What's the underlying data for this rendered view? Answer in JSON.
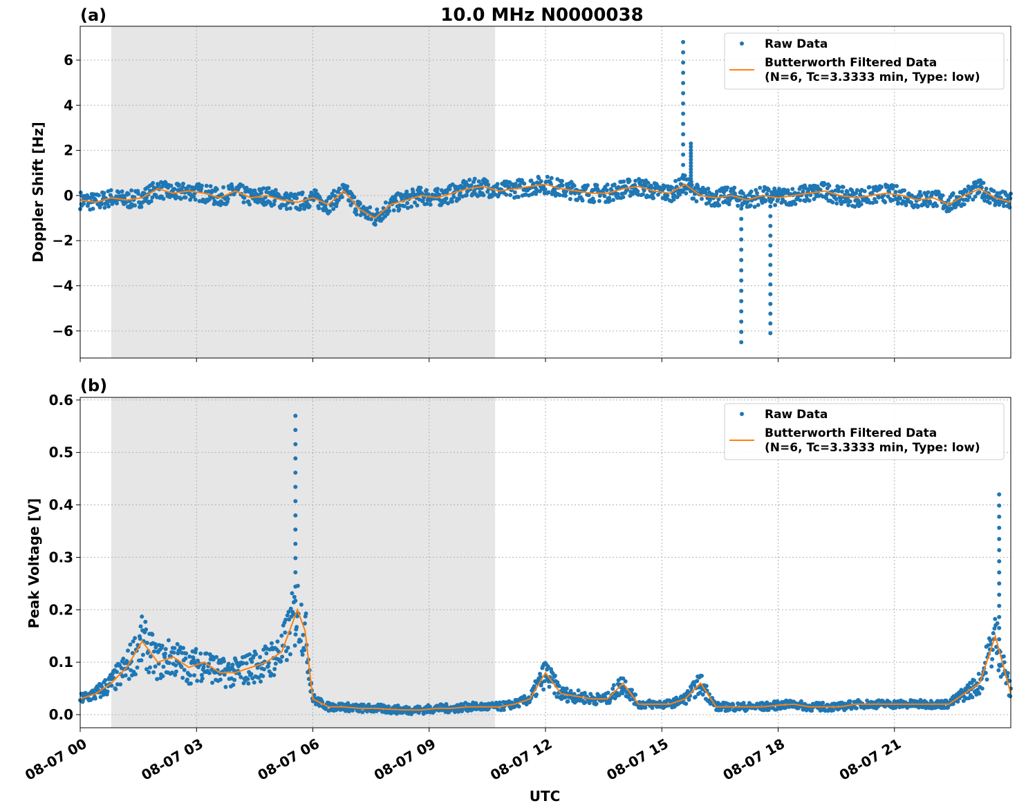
{
  "figure": {
    "title": "10.0 MHz N0000038",
    "xlabel": "UTC",
    "x_ticks": [
      "08-07 00",
      "08-07 03",
      "08-07 06",
      "08-07 09",
      "08-07 12",
      "08-07 15",
      "08-07 18",
      "08-07 21"
    ],
    "shaded_region_hours": [
      0.8,
      10.7
    ],
    "colors": {
      "raw": "#1f77b4",
      "filtered": "#ff7f0e",
      "shade": "#e6e6e6",
      "grid": "#b0b0b0"
    }
  },
  "legend": {
    "raw_label": "Raw Data",
    "filtered_label_line1": "Butterworth Filtered Data",
    "filtered_label_line2": "(N=6, Tc=3.3333 min, Type: low)"
  },
  "chart_data": [
    {
      "type": "scatter",
      "panel_label": "(a)",
      "ylabel": "Doppler Shift [Hz]",
      "xlim_hours": [
        0,
        24
      ],
      "ylim": [
        -7.2,
        7.5
      ],
      "y_ticks": [
        -6,
        -4,
        -2,
        0,
        2,
        4,
        6
      ],
      "y_tick_labels": [
        "−6",
        "−4",
        "−2",
        "0",
        "2",
        "4",
        "6"
      ],
      "grid": true,
      "legend_position": "top-right",
      "series": [
        {
          "name": "Raw Data",
          "x_hours": [
            0,
            0.4,
            0.8,
            1.2,
            1.6,
            2.0,
            2.4,
            2.8,
            3.2,
            3.6,
            4.0,
            4.4,
            4.8,
            5.2,
            5.6,
            6.0,
            6.4,
            6.8,
            7.2,
            7.6,
            8.0,
            8.4,
            8.8,
            9.2,
            9.6,
            10.0,
            10.4,
            10.8,
            11.2,
            11.6,
            12.0,
            12.4,
            12.8,
            13.2,
            13.6,
            14.0,
            14.4,
            14.8,
            15.2,
            15.6,
            16.0,
            16.4,
            16.8,
            17.2,
            17.6,
            18.0,
            18.4,
            18.8,
            19.2,
            19.6,
            20.0,
            20.4,
            20.8,
            21.2,
            21.6,
            22.0,
            22.4,
            22.8,
            23.2,
            23.6,
            24.0
          ],
          "y": [
            -0.2,
            -0.3,
            -0.1,
            -0.2,
            -0.1,
            0.3,
            0.1,
            0.2,
            0.1,
            -0.1,
            0.2,
            -0.1,
            0.0,
            -0.2,
            -0.3,
            -0.1,
            -0.4,
            0.2,
            -0.6,
            -1.0,
            -0.4,
            -0.2,
            0.0,
            -0.1,
            0.1,
            0.3,
            0.4,
            0.2,
            0.3,
            0.4,
            0.5,
            0.3,
            0.2,
            0.1,
            0.1,
            0.3,
            0.4,
            0.2,
            0.1,
            0.5,
            0.0,
            -0.1,
            0.0,
            -0.2,
            0.0,
            -0.1,
            0.0,
            0.1,
            0.2,
            0.0,
            -0.1,
            0.0,
            0.1,
            0.0,
            -0.2,
            -0.1,
            -0.4,
            0.0,
            0.3,
            -0.1,
            -0.3
          ],
          "spikes_hours": [
            15.55,
            15.75,
            17.05,
            17.8
          ],
          "spikes_y": [
            6.8,
            2.3,
            -6.5,
            -6.1
          ]
        },
        {
          "name": "Butterworth Filtered Data (N=6, Tc=3.3333 min, Type: low)",
          "x_hours": [
            0,
            0.4,
            0.8,
            1.2,
            1.6,
            2.0,
            2.4,
            2.8,
            3.2,
            3.6,
            4.0,
            4.4,
            4.8,
            5.2,
            5.6,
            6.0,
            6.4,
            6.8,
            7.2,
            7.6,
            8.0,
            8.4,
            8.8,
            9.2,
            9.6,
            10.0,
            10.4,
            10.8,
            11.2,
            11.6,
            12.0,
            12.4,
            12.8,
            13.2,
            13.6,
            14.0,
            14.4,
            14.8,
            15.2,
            15.6,
            16.0,
            16.4,
            16.8,
            17.2,
            17.6,
            18.0,
            18.4,
            18.8,
            19.2,
            19.6,
            20.0,
            20.4,
            20.8,
            21.2,
            21.6,
            22.0,
            22.4,
            22.8,
            23.2,
            23.6,
            24.0
          ],
          "y": [
            -0.2,
            -0.3,
            -0.1,
            -0.2,
            -0.1,
            0.3,
            0.1,
            0.2,
            0.1,
            -0.1,
            0.2,
            -0.1,
            0.0,
            -0.2,
            -0.3,
            -0.1,
            -0.4,
            0.2,
            -0.6,
            -1.0,
            -0.4,
            -0.2,
            0.0,
            -0.1,
            0.1,
            0.3,
            0.4,
            0.2,
            0.3,
            0.4,
            0.5,
            0.3,
            0.2,
            0.1,
            0.1,
            0.3,
            0.4,
            0.2,
            0.1,
            0.5,
            0.0,
            -0.1,
            0.0,
            -0.2,
            0.0,
            -0.1,
            0.0,
            0.1,
            0.2,
            0.0,
            -0.1,
            0.0,
            0.1,
            0.0,
            -0.2,
            -0.1,
            -0.4,
            0.0,
            0.3,
            -0.1,
            -0.3
          ]
        }
      ]
    },
    {
      "type": "scatter",
      "panel_label": "(b)",
      "ylabel": "Peak Voltage [V]",
      "xlim_hours": [
        0,
        24
      ],
      "ylim": [
        -0.025,
        0.605
      ],
      "y_ticks": [
        0.0,
        0.1,
        0.2,
        0.3,
        0.4,
        0.5,
        0.6
      ],
      "y_tick_labels": [
        "0.0",
        "0.1",
        "0.2",
        "0.3",
        "0.4",
        "0.5",
        "0.6"
      ],
      "grid": true,
      "legend_position": "top-right",
      "series": [
        {
          "name": "Raw Data",
          "x_hours": [
            0,
            0.4,
            0.8,
            1.2,
            1.6,
            2.0,
            2.4,
            2.8,
            3.2,
            3.6,
            4.0,
            4.4,
            4.8,
            5.2,
            5.6,
            5.8,
            6.0,
            6.4,
            6.8,
            7.2,
            7.6,
            8.0,
            8.4,
            8.8,
            9.2,
            9.6,
            10.0,
            10.4,
            10.8,
            11.2,
            11.6,
            12.0,
            12.4,
            12.8,
            13.2,
            13.6,
            14.0,
            14.4,
            14.8,
            15.2,
            15.6,
            16.0,
            16.4,
            16.8,
            17.2,
            17.6,
            18.0,
            18.4,
            18.8,
            19.2,
            19.6,
            20.0,
            20.4,
            20.8,
            21.2,
            21.6,
            22.0,
            22.4,
            22.8,
            23.2,
            23.6,
            24.0
          ],
          "y": [
            0.03,
            0.04,
            0.06,
            0.09,
            0.14,
            0.1,
            0.11,
            0.09,
            0.1,
            0.08,
            0.08,
            0.09,
            0.1,
            0.12,
            0.2,
            0.16,
            0.03,
            0.015,
            0.015,
            0.012,
            0.012,
            0.01,
            0.009,
            0.009,
            0.012,
            0.012,
            0.015,
            0.015,
            0.015,
            0.02,
            0.03,
            0.08,
            0.04,
            0.035,
            0.03,
            0.03,
            0.06,
            0.02,
            0.02,
            0.02,
            0.03,
            0.06,
            0.015,
            0.015,
            0.015,
            0.015,
            0.018,
            0.02,
            0.015,
            0.015,
            0.015,
            0.02,
            0.02,
            0.02,
            0.02,
            0.02,
            0.02,
            0.02,
            0.04,
            0.06,
            0.15,
            0.04
          ],
          "spikes_hours": [
            5.55,
            23.7
          ],
          "spikes_y": [
            0.57,
            0.42
          ]
        },
        {
          "name": "Butterworth Filtered Data (N=6, Tc=3.3333 min, Type: low)",
          "x_hours": [
            0,
            0.4,
            0.8,
            1.2,
            1.6,
            2.0,
            2.4,
            2.8,
            3.2,
            3.6,
            4.0,
            4.4,
            4.8,
            5.2,
            5.6,
            5.8,
            6.0,
            6.4,
            6.8,
            7.2,
            7.6,
            8.0,
            8.4,
            8.8,
            9.2,
            9.6,
            10.0,
            10.4,
            10.8,
            11.2,
            11.6,
            12.0,
            12.4,
            12.8,
            13.2,
            13.6,
            14.0,
            14.4,
            14.8,
            15.2,
            15.6,
            16.0,
            16.4,
            16.8,
            17.2,
            17.6,
            18.0,
            18.4,
            18.8,
            19.2,
            19.6,
            20.0,
            20.4,
            20.8,
            21.2,
            21.6,
            22.0,
            22.4,
            22.8,
            23.2,
            23.6,
            24.0
          ],
          "y": [
            0.03,
            0.04,
            0.06,
            0.09,
            0.14,
            0.1,
            0.11,
            0.09,
            0.1,
            0.08,
            0.08,
            0.09,
            0.1,
            0.12,
            0.2,
            0.16,
            0.03,
            0.015,
            0.015,
            0.012,
            0.012,
            0.01,
            0.009,
            0.009,
            0.012,
            0.012,
            0.015,
            0.015,
            0.015,
            0.02,
            0.03,
            0.08,
            0.04,
            0.035,
            0.03,
            0.03,
            0.06,
            0.02,
            0.02,
            0.02,
            0.03,
            0.06,
            0.015,
            0.015,
            0.015,
            0.015,
            0.018,
            0.02,
            0.015,
            0.015,
            0.015,
            0.02,
            0.02,
            0.02,
            0.02,
            0.02,
            0.02,
            0.02,
            0.04,
            0.06,
            0.15,
            0.04
          ]
        }
      ]
    }
  ]
}
